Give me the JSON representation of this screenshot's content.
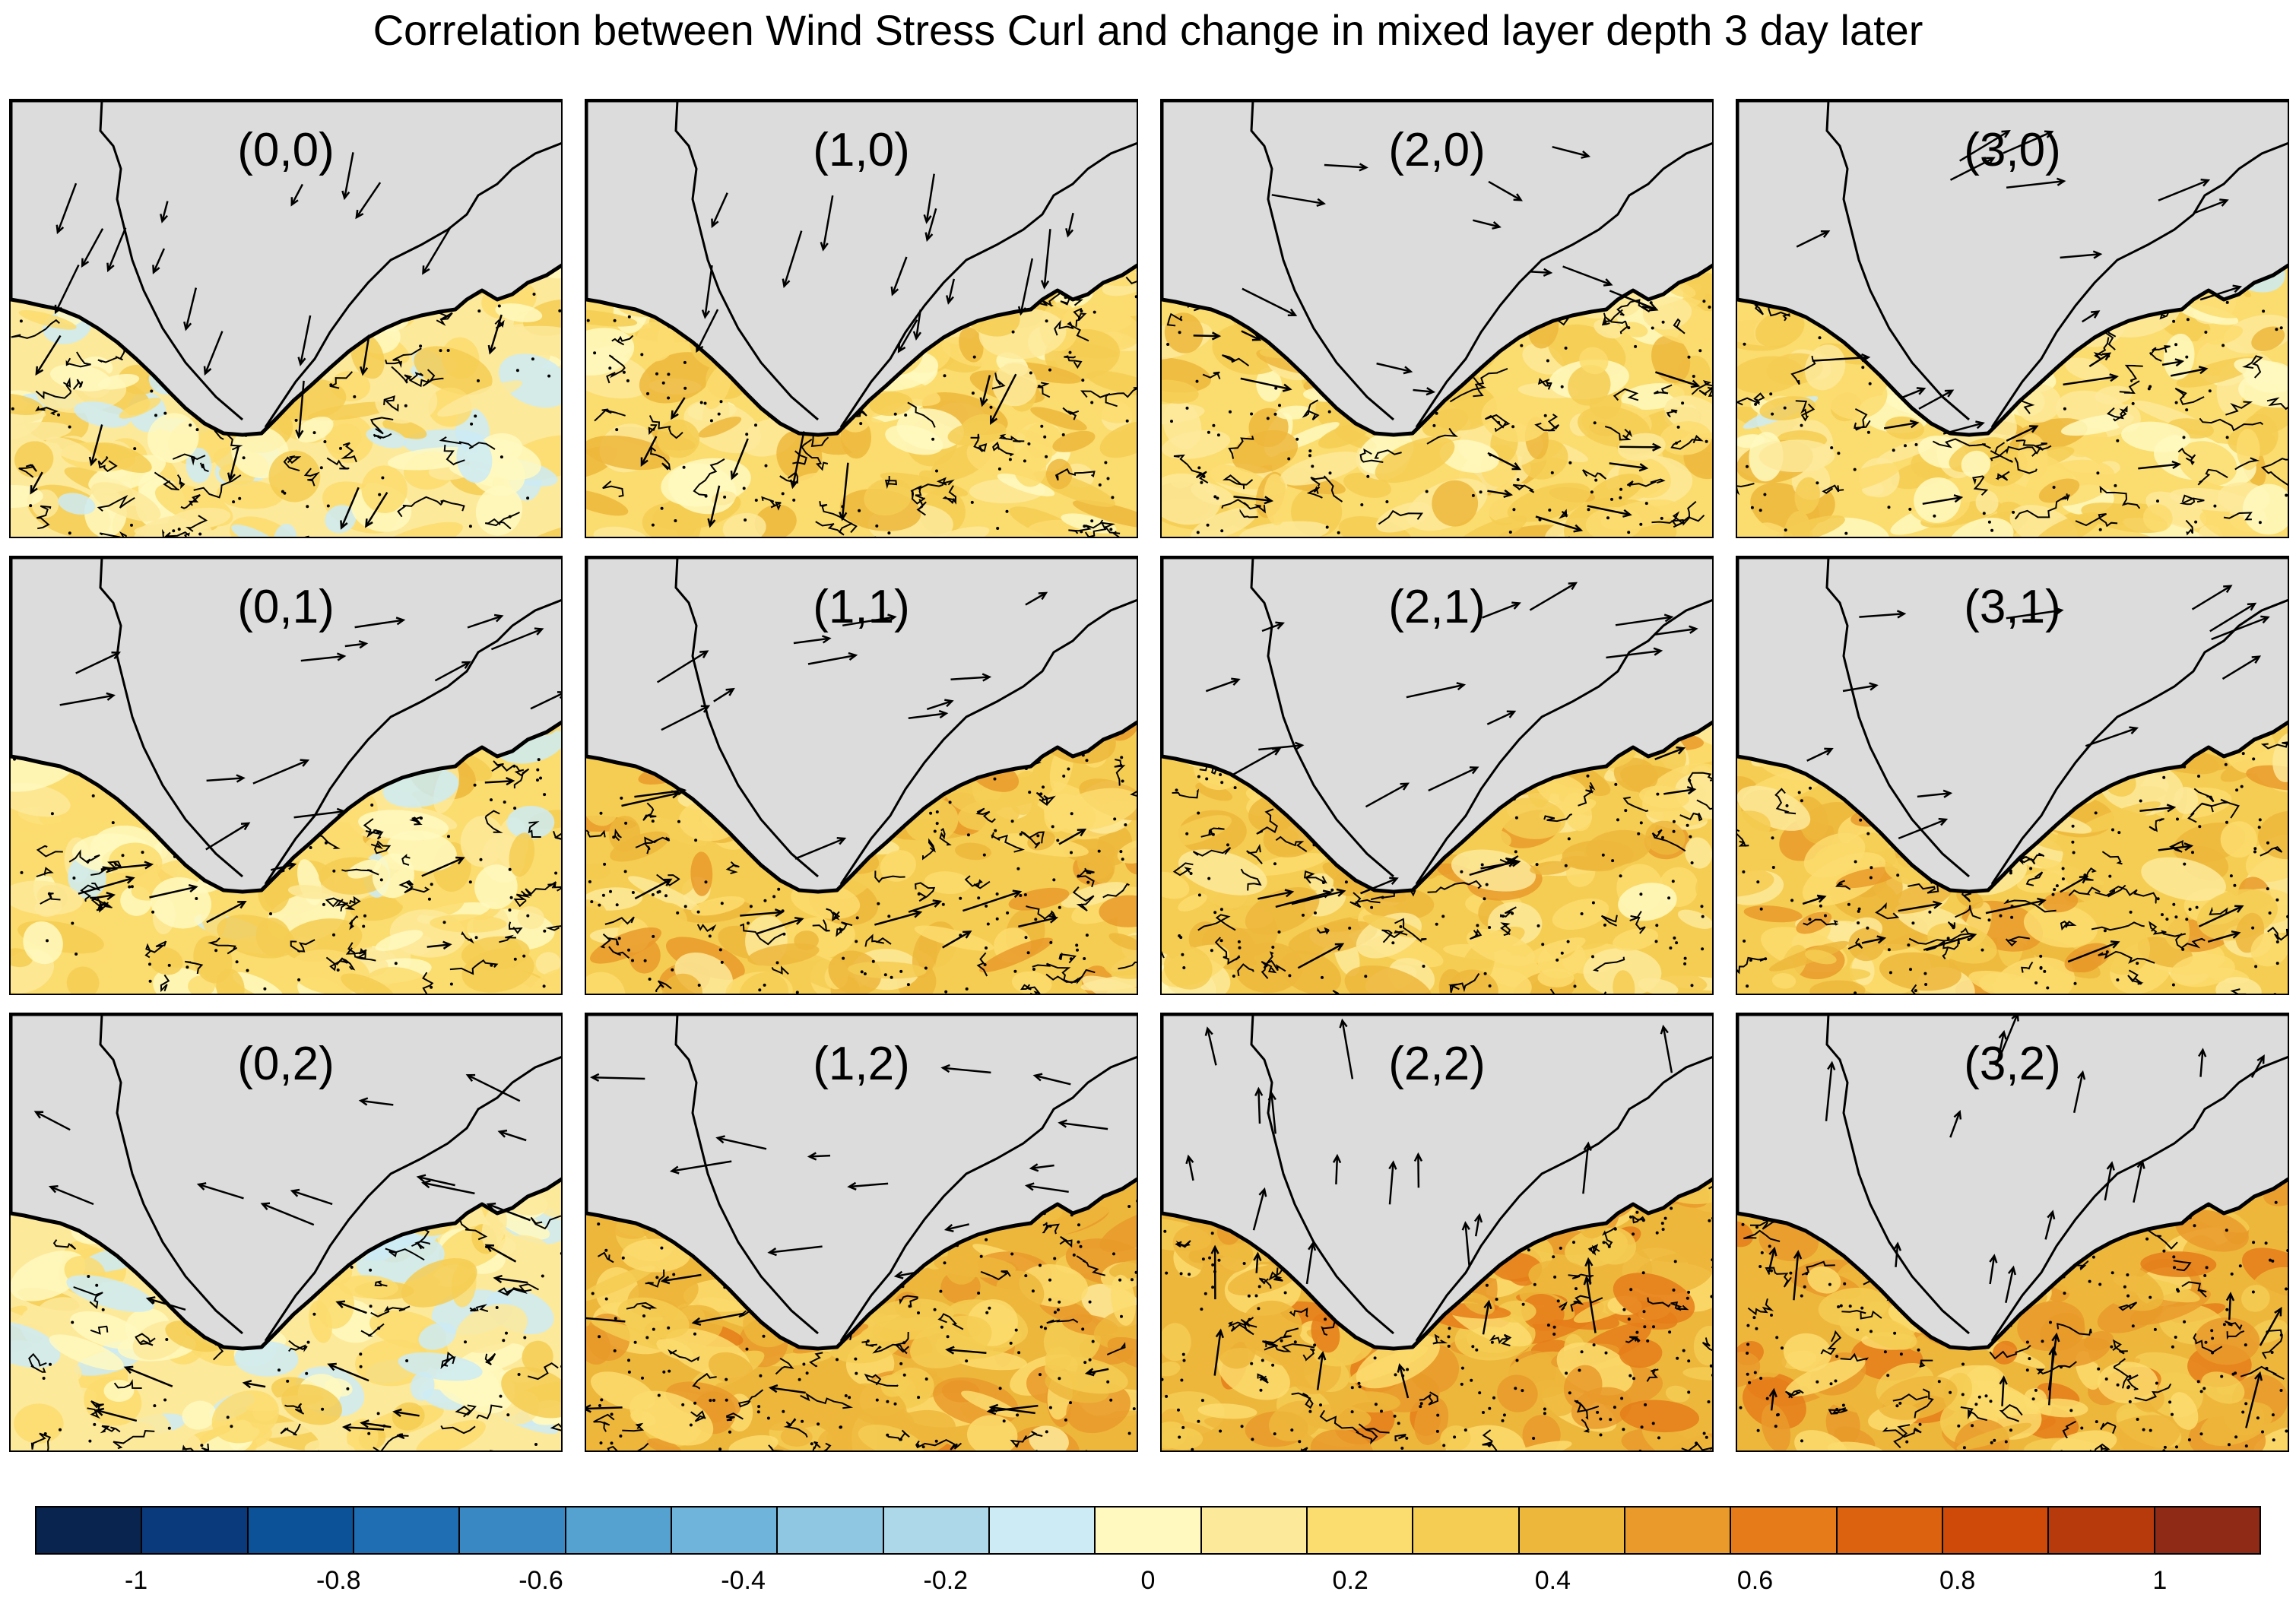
{
  "title": "Correlation between Wind Stress Curl and change in mixed layer depth 3 day later",
  "chart_data": {
    "type": "heatmap",
    "title": "Correlation between Wind Stress Curl and change in mixed layer depth 3 day later",
    "panels": [
      {
        "label": "(0,0)",
        "mean_correlation": 0.05,
        "wind_direction": "south-southwest"
      },
      {
        "label": "(1,0)",
        "mean_correlation": 0.15,
        "wind_direction": "south-southwest"
      },
      {
        "label": "(2,0)",
        "mean_correlation": 0.15,
        "wind_direction": "east-southeast"
      },
      {
        "label": "(3,0)",
        "mean_correlation": 0.1,
        "wind_direction": "east-northeast"
      },
      {
        "label": "(0,1)",
        "mean_correlation": 0.1,
        "wind_direction": "east-northeast"
      },
      {
        "label": "(1,1)",
        "mean_correlation": 0.25,
        "wind_direction": "east-northeast"
      },
      {
        "label": "(2,1)",
        "mean_correlation": 0.2,
        "wind_direction": "east-northeast"
      },
      {
        "label": "(3,1)",
        "mean_correlation": 0.25,
        "wind_direction": "east-northeast"
      },
      {
        "label": "(0,2)",
        "mean_correlation": 0.05,
        "wind_direction": "west-southwest"
      },
      {
        "label": "(1,2)",
        "mean_correlation": 0.3,
        "wind_direction": "west"
      },
      {
        "label": "(2,2)",
        "mean_correlation": 0.35,
        "wind_direction": "north"
      },
      {
        "label": "(3,2)",
        "mean_correlation": 0.35,
        "wind_direction": "north-northeast"
      }
    ],
    "colorbar": {
      "levels": [
        -1.1,
        -1,
        -0.9,
        -0.8,
        -0.7,
        -0.6,
        -0.5,
        -0.4,
        -0.3,
        -0.2,
        -0.1,
        0,
        0.1,
        0.2,
        0.3,
        0.4,
        0.5,
        0.6,
        0.7,
        0.8,
        0.9,
        1,
        1.1
      ],
      "colors": [
        "#08244f",
        "#0a3a7c",
        "#0b5299",
        "#1f6db2",
        "#3a88c3",
        "#55a1d0",
        "#6fb4db",
        "#8fc7e3",
        "#acd8ea",
        "#cdebf5",
        "#fff9c0",
        "#fde99a",
        "#fbdc6e",
        "#f5cd52",
        "#edb73c",
        "#e99a2a",
        "#e57c19",
        "#dd620f",
        "#cf4a09",
        "#b63a0b",
        "#8f2a16"
      ],
      "tick_labels": [
        "-1",
        "-0.8",
        "-0.6",
        "-0.4",
        "-0.2",
        "0",
        "0.2",
        "0.4",
        "0.6",
        "0.8",
        "1"
      ],
      "tick_values": [
        -1,
        -0.8,
        -0.6,
        -0.4,
        -0.2,
        0,
        0.2,
        0.4,
        0.6,
        0.8,
        1
      ]
    },
    "land_color": "#dcdcdc",
    "ocean_base_color": "#fbf0b4"
  }
}
